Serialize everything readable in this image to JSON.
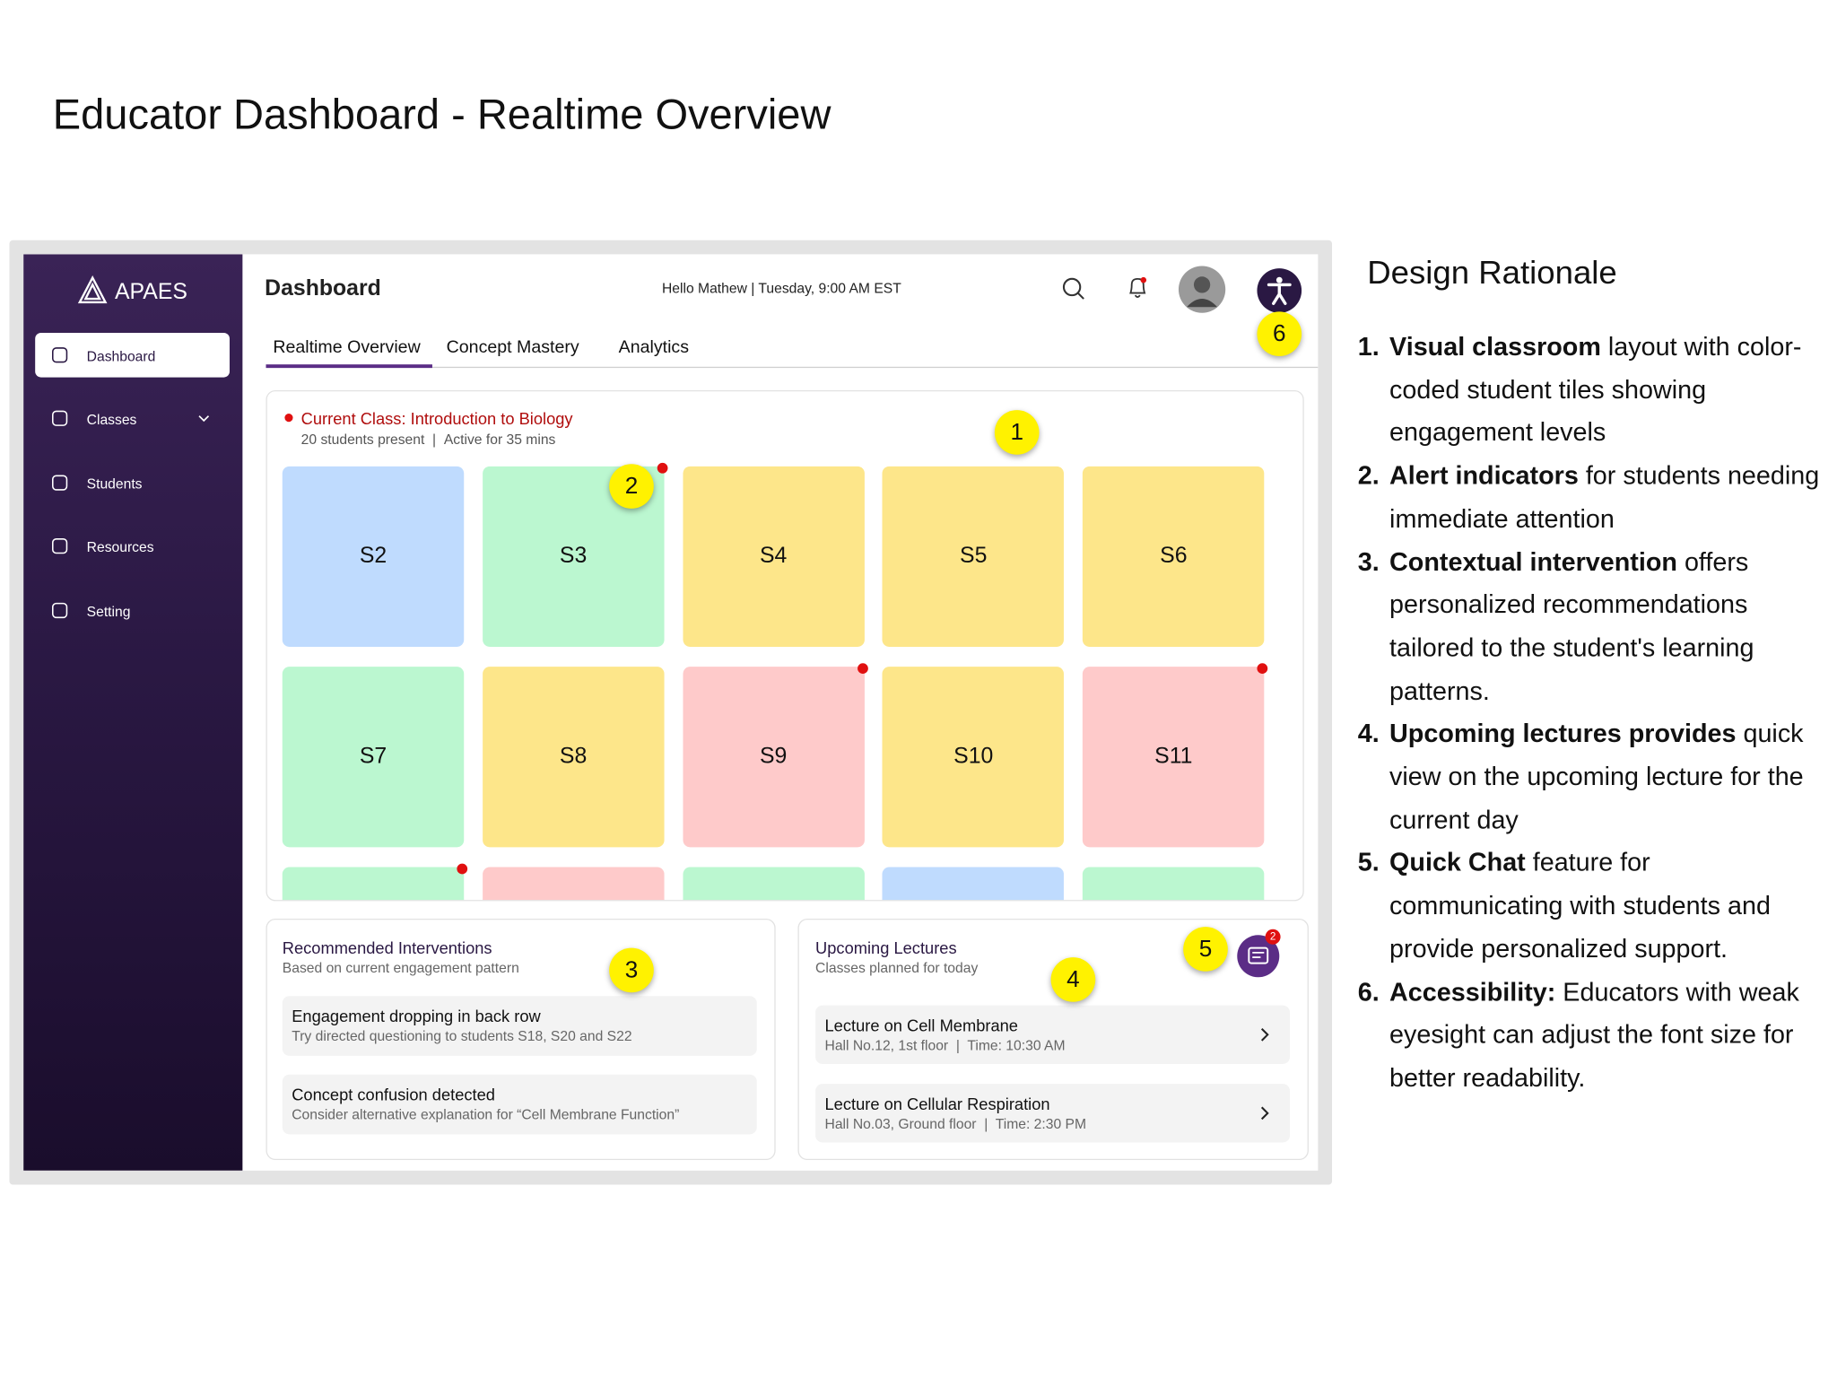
{
  "title": "Educator Dashboard - Realtime Overview",
  "dashboard": {
    "brand": "APAES",
    "nav": [
      "Dashboard",
      "Classes",
      "Students",
      "Resources",
      "Setting"
    ],
    "header": {
      "title": "Dashboard",
      "greeting": "Hello Mathew | Tuesday, 9:00 AM EST"
    },
    "tabs": [
      "Realtime Overview",
      "Concept Mastery",
      "Analytics"
    ],
    "current_class": {
      "title": "Current Class: Introduction to Biology",
      "present": "20 students present",
      "active": "Active for 35 mins"
    },
    "tiles": [
      {
        "label": "S2",
        "color": "#bfdbfe",
        "alert": false
      },
      {
        "label": "S3",
        "color": "#bbf7d0",
        "alert": true
      },
      {
        "label": "S4",
        "color": "#fde68a",
        "alert": false
      },
      {
        "label": "S5",
        "color": "#fde68a",
        "alert": false
      },
      {
        "label": "S6",
        "color": "#fde68a",
        "alert": false
      },
      {
        "label": "S7",
        "color": "#bbf7d0",
        "alert": false
      },
      {
        "label": "S8",
        "color": "#fde68a",
        "alert": false
      },
      {
        "label": "S9",
        "color": "#fecaca",
        "alert": true
      },
      {
        "label": "S10",
        "color": "#fde68a",
        "alert": false
      },
      {
        "label": "S11",
        "color": "#fecaca",
        "alert": true
      },
      {
        "label": null,
        "color": "#bbf7d0",
        "alert": true
      },
      {
        "label": null,
        "color": "#fecaca",
        "alert": false
      },
      {
        "label": null,
        "color": "#bbf7d0",
        "alert": false
      },
      {
        "label": null,
        "color": "#bfdbfe",
        "alert": false
      },
      {
        "label": null,
        "color": "#bbf7d0",
        "alert": false
      }
    ],
    "interventions": {
      "title": "Recommended Interventions",
      "subtitle": "Based on current engagement pattern",
      "items": [
        {
          "title": "Engagement dropping in back row",
          "detail": "Try directed questioning to students S18, S20 and S22"
        },
        {
          "title": "Concept confusion detected",
          "detail": "Consider alternative explanation for “Cell Membrane Function”"
        }
      ]
    },
    "lectures": {
      "title": "Upcoming Lectures",
      "subtitle": "Classes planned for today",
      "items": [
        {
          "title": "Lecture on Cell Membrane",
          "detail": "Hall No.12, 1st floor  |  Time: 10:30 AM"
        },
        {
          "title": "Lecture on Cellular Respiration",
          "detail": "Hall No.03, Ground floor  |  Time: 2:30 PM"
        }
      ]
    },
    "chat_badge": "2"
  },
  "annotations": [
    "1",
    "2",
    "3",
    "4",
    "5",
    "6"
  ],
  "rationale": {
    "title": "Design Rationale",
    "items": [
      {
        "number": "1.",
        "bold": "Visual classroom",
        "text": " layout with color-coded student tiles showing engagement levels"
      },
      {
        "number": "2.",
        "bold": "Alert indicators",
        "text": " for students needing immediate attention"
      },
      {
        "number": "3.",
        "bold": "Contextual intervention",
        "text": " offers personalized recommendations tailored to the student's learning patterns."
      },
      {
        "number": "4.",
        "bold": "Upcoming lectures provides",
        "text": " quick view on the upcoming lecture for the current day"
      },
      {
        "number": "5.",
        "bold": "Quick Chat",
        "text": " feature for communicating with students and provide personalized support."
      },
      {
        "number": "6.",
        "bold": "Accessibility:",
        "text": " Educators with weak eyesight can adjust the font size for better readability."
      }
    ]
  }
}
